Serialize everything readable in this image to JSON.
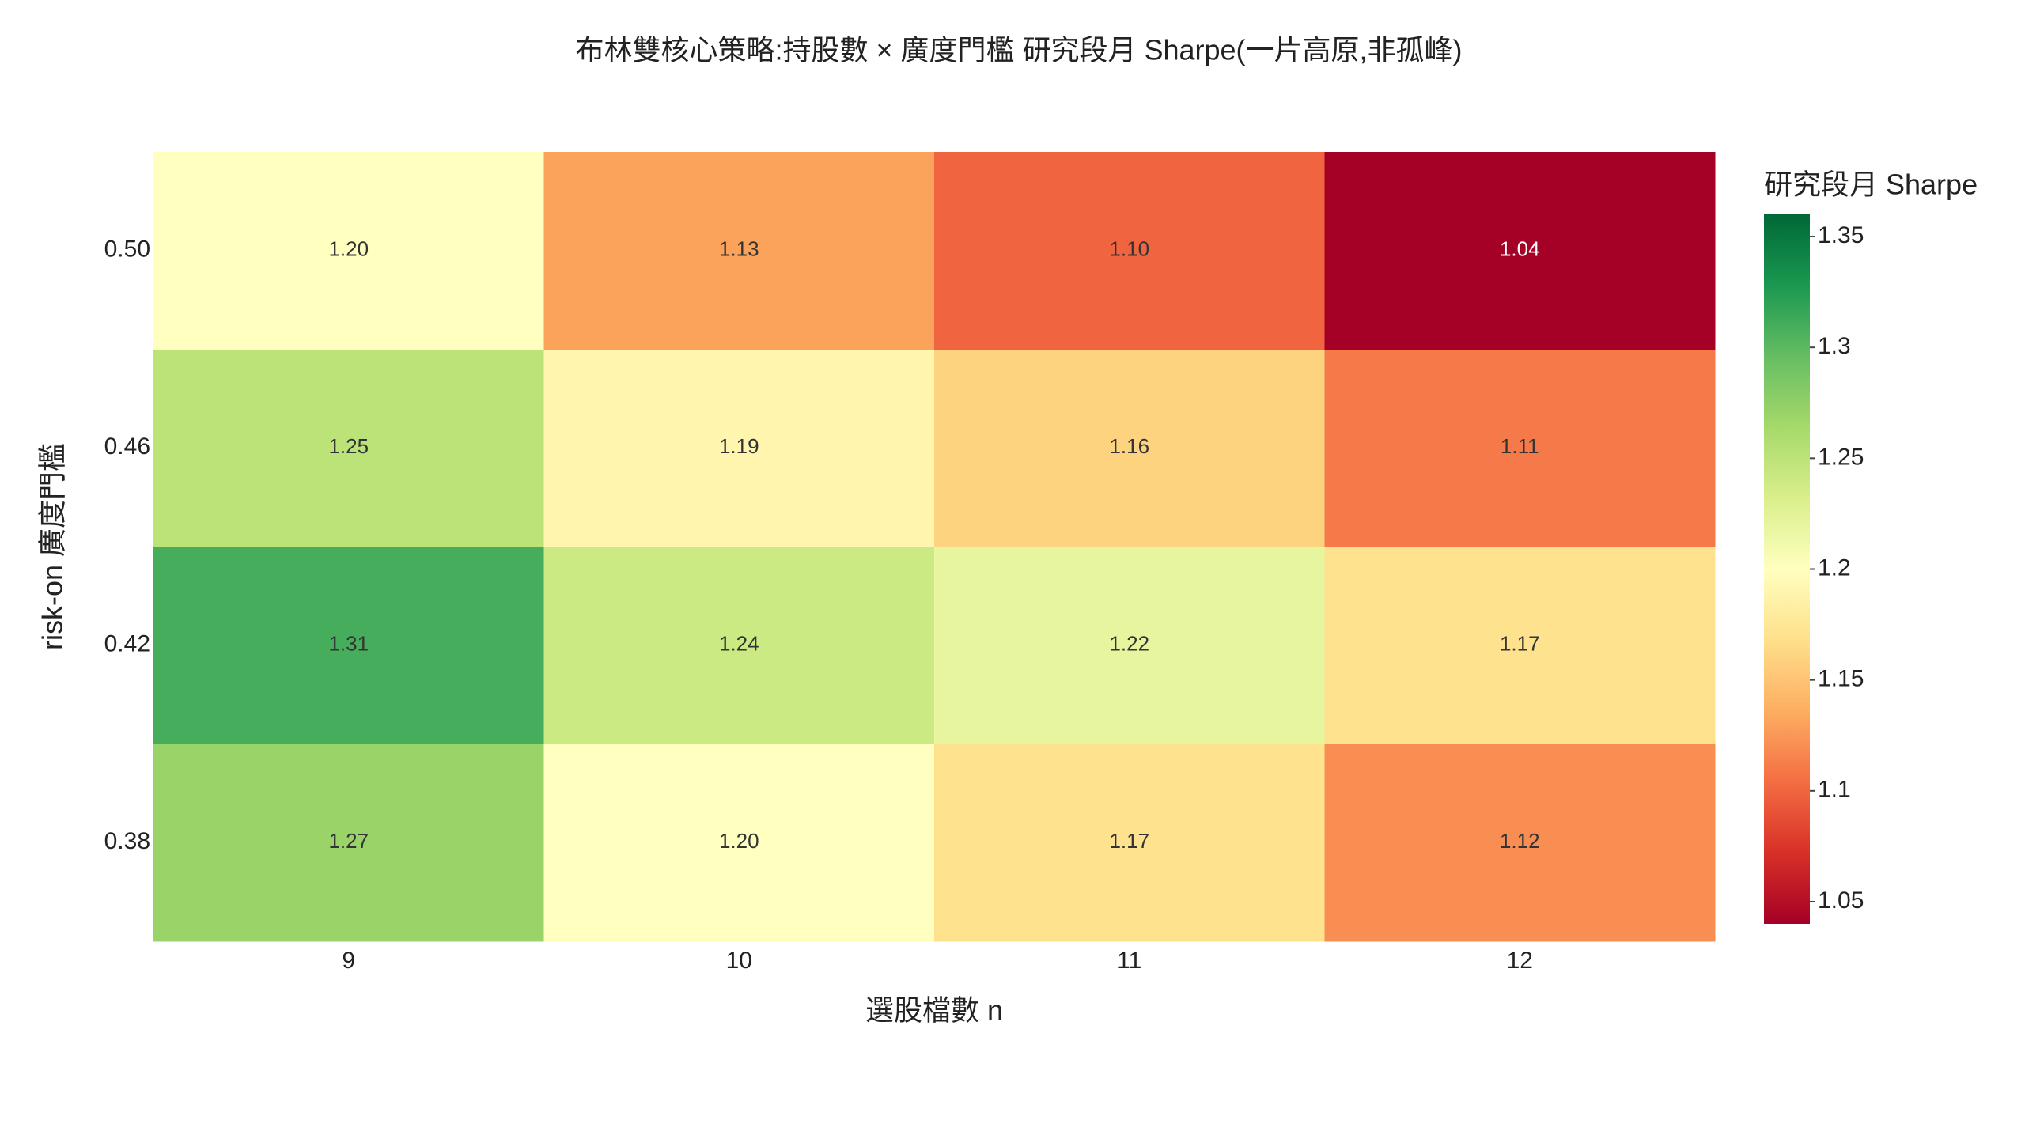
{
  "chart_data": {
    "type": "heatmap",
    "title": "布林雙核心策略:持股數 × 廣度門檻 研究段月 Sharpe(一片高原,非孤峰)",
    "x_label": "選股檔數 n",
    "y_label": "risk-on 廣度門檻",
    "colorbar_title": "研究段月 Sharpe",
    "x_categories": [
      "9",
      "10",
      "11",
      "12"
    ],
    "y_categories": [
      "0.38",
      "0.42",
      "0.46",
      "0.50"
    ],
    "z": [
      [
        1.27,
        1.2,
        1.17,
        1.12
      ],
      [
        1.31,
        1.24,
        1.22,
        1.17
      ],
      [
        1.25,
        1.19,
        1.16,
        1.11
      ],
      [
        1.2,
        1.13,
        1.1,
        1.04
      ]
    ],
    "value_labels": [
      [
        "1.27",
        "1.20",
        "1.17",
        "1.12"
      ],
      [
        "1.31",
        "1.24",
        "1.22",
        "1.17"
      ],
      [
        "1.25",
        "1.19",
        "1.16",
        "1.11"
      ],
      [
        "1.20",
        "1.13",
        "1.10",
        "1.04"
      ]
    ],
    "zlim": [
      1.04,
      1.36
    ],
    "zticks": [
      1.05,
      1.1,
      1.15,
      1.2,
      1.25,
      1.3,
      1.35
    ],
    "colorscale": [
      "#a50026",
      "#d73027",
      "#f46d43",
      "#fdae61",
      "#fee08b",
      "#ffffbf",
      "#d9ef8b",
      "#a6d96a",
      "#66bd63",
      "#1a9850",
      "#006837"
    ]
  }
}
